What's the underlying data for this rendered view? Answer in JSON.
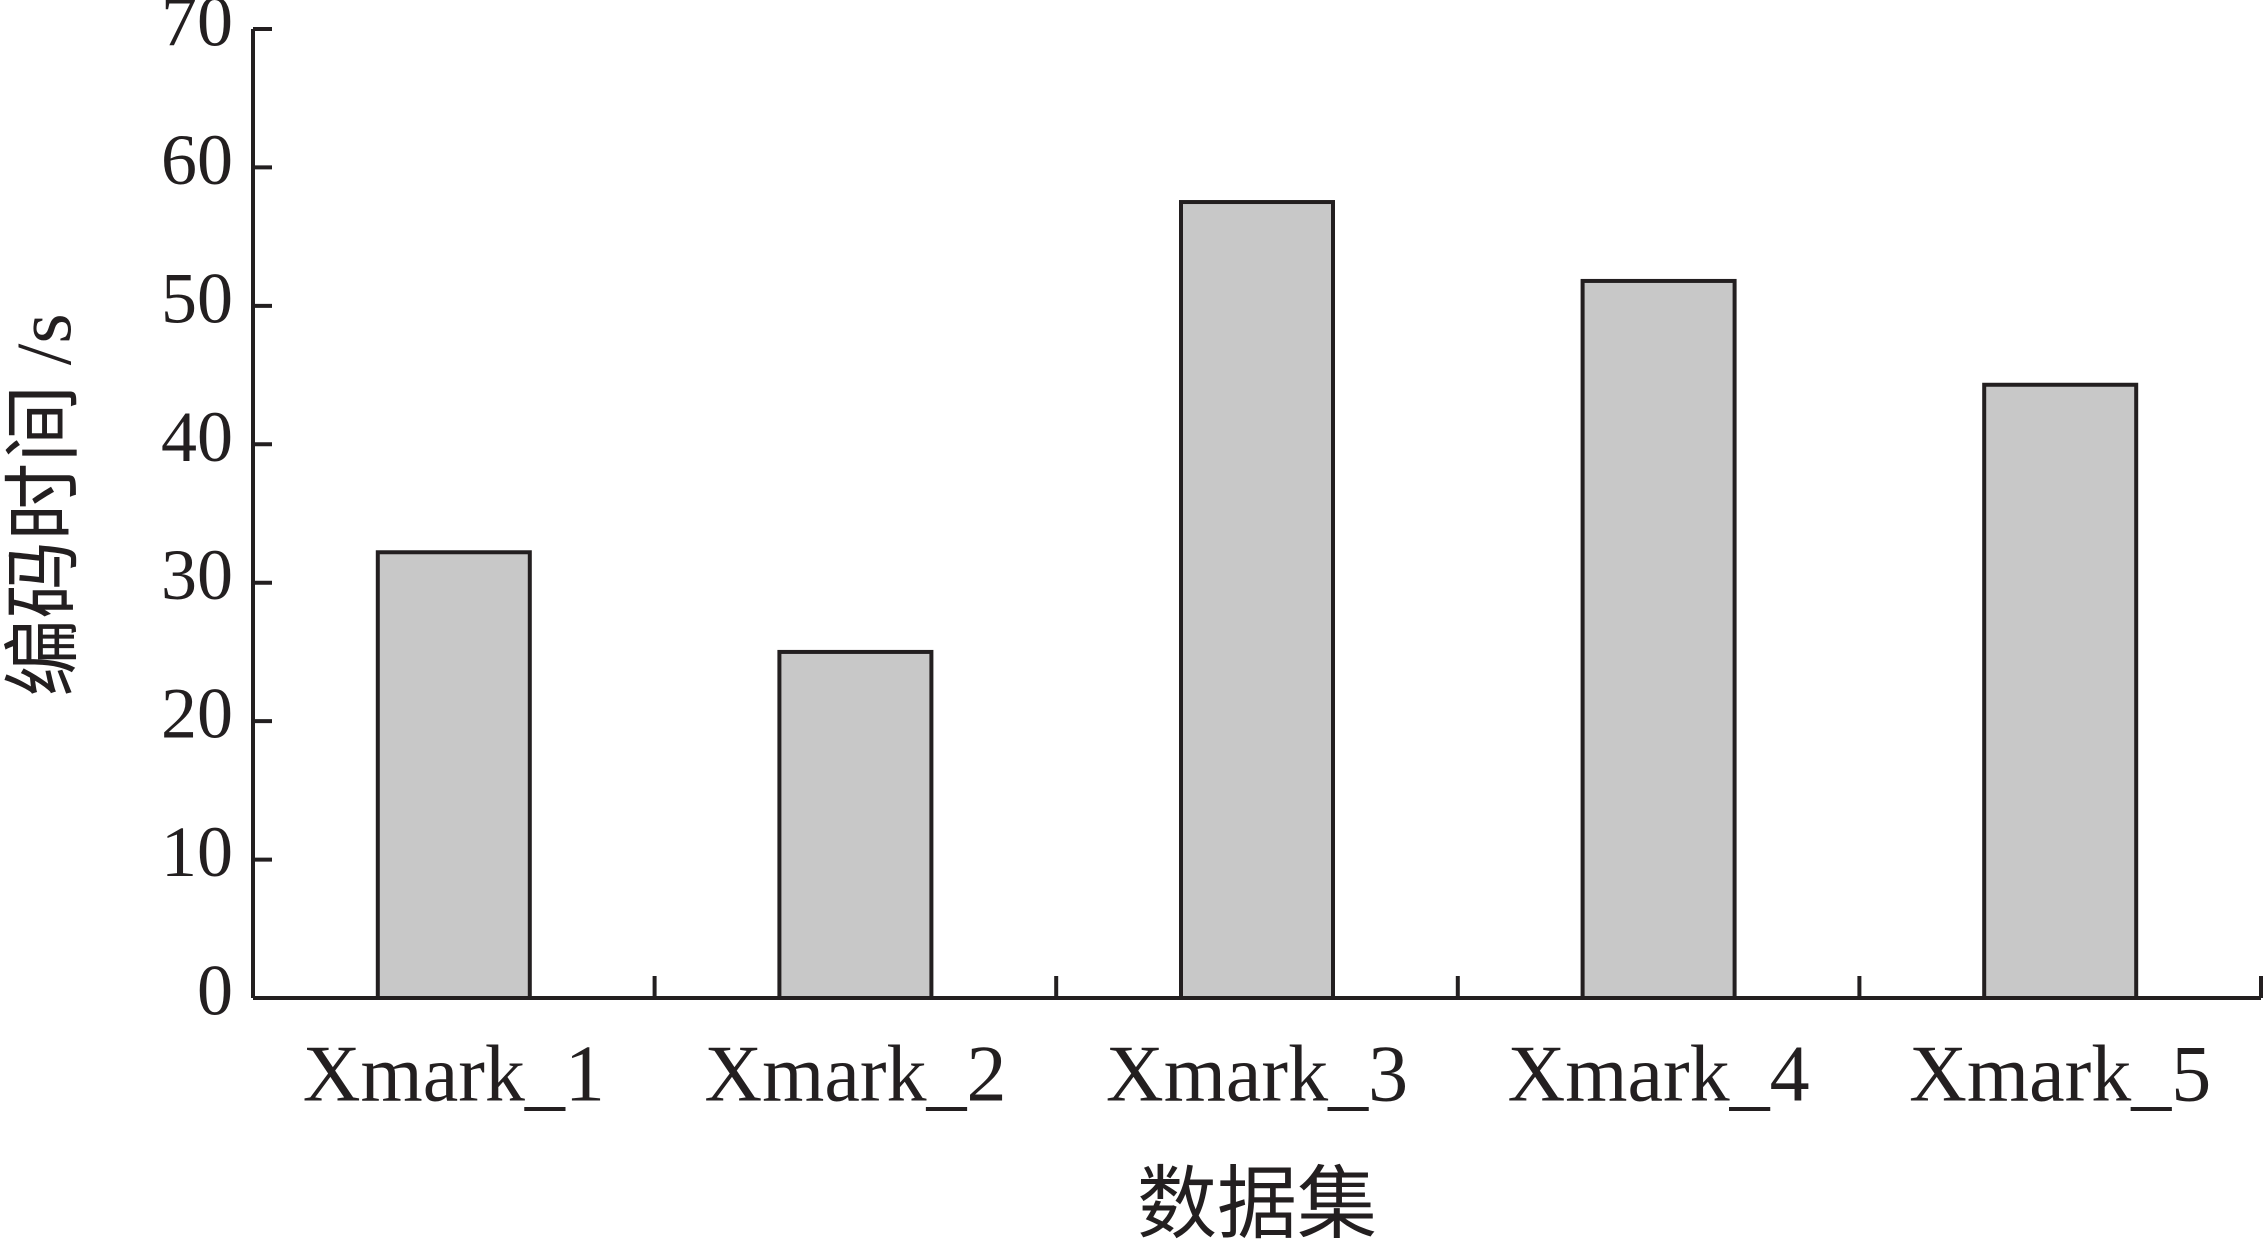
{
  "chart_data": {
    "type": "bar",
    "x_label": "数据集",
    "y_label": "编码时间 /s",
    "categories": [
      "Xmark_1",
      "Xmark_2",
      "Xmark_3",
      "Xmark_4",
      "Xmark_5"
    ],
    "values": [
      32.2,
      25,
      57.5,
      51.8,
      44.3
    ],
    "color": "#c8c8c8",
    "ylim": [
      0,
      70
    ],
    "yticks": [
      0,
      10,
      20,
      30,
      40,
      50,
      60,
      70
    ],
    "grid": false
  }
}
